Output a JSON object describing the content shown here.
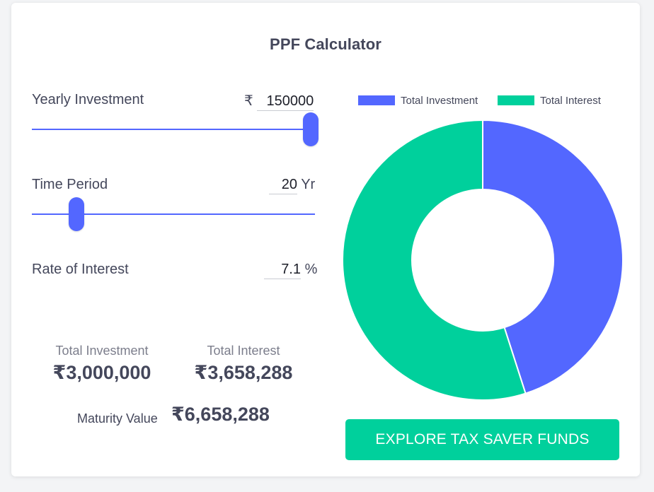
{
  "title": "PPF Calculator",
  "rows": {
    "yearly_investment": {
      "label": "Yearly Investment",
      "currency_symbol": "₹",
      "value": "150000",
      "slider_fraction": 1.0
    },
    "time_period": {
      "label": "Time Period",
      "value": "20",
      "unit": "Yr",
      "slider_fraction": 0.15
    },
    "rate_of_interest": {
      "label": "Rate of Interest",
      "value": "7.1",
      "unit": "%"
    }
  },
  "summary": {
    "total_investment_label": "Total Investment",
    "total_investment_value": "₹3,000,000",
    "total_interest_label": "Total Interest",
    "total_interest_value": "₹3,658,288",
    "maturity_label": "Maturity Value",
    "maturity_value": "₹6,658,288"
  },
  "legend": {
    "investment": "Total Investment",
    "interest": "Total Interest"
  },
  "colors": {
    "investment": "#5367ff",
    "interest": "#00d09c",
    "slider": "#5367ff",
    "text": "#44475b"
  },
  "chart_data": {
    "type": "pie",
    "categories": [
      "Total Investment",
      "Total Interest"
    ],
    "values": [
      3000000,
      3658288
    ],
    "colors": [
      "#5367ff",
      "#00d09c"
    ],
    "donut": true,
    "legend_position": "top"
  },
  "cta": {
    "label": "EXPLORE TAX SAVER FUNDS"
  }
}
